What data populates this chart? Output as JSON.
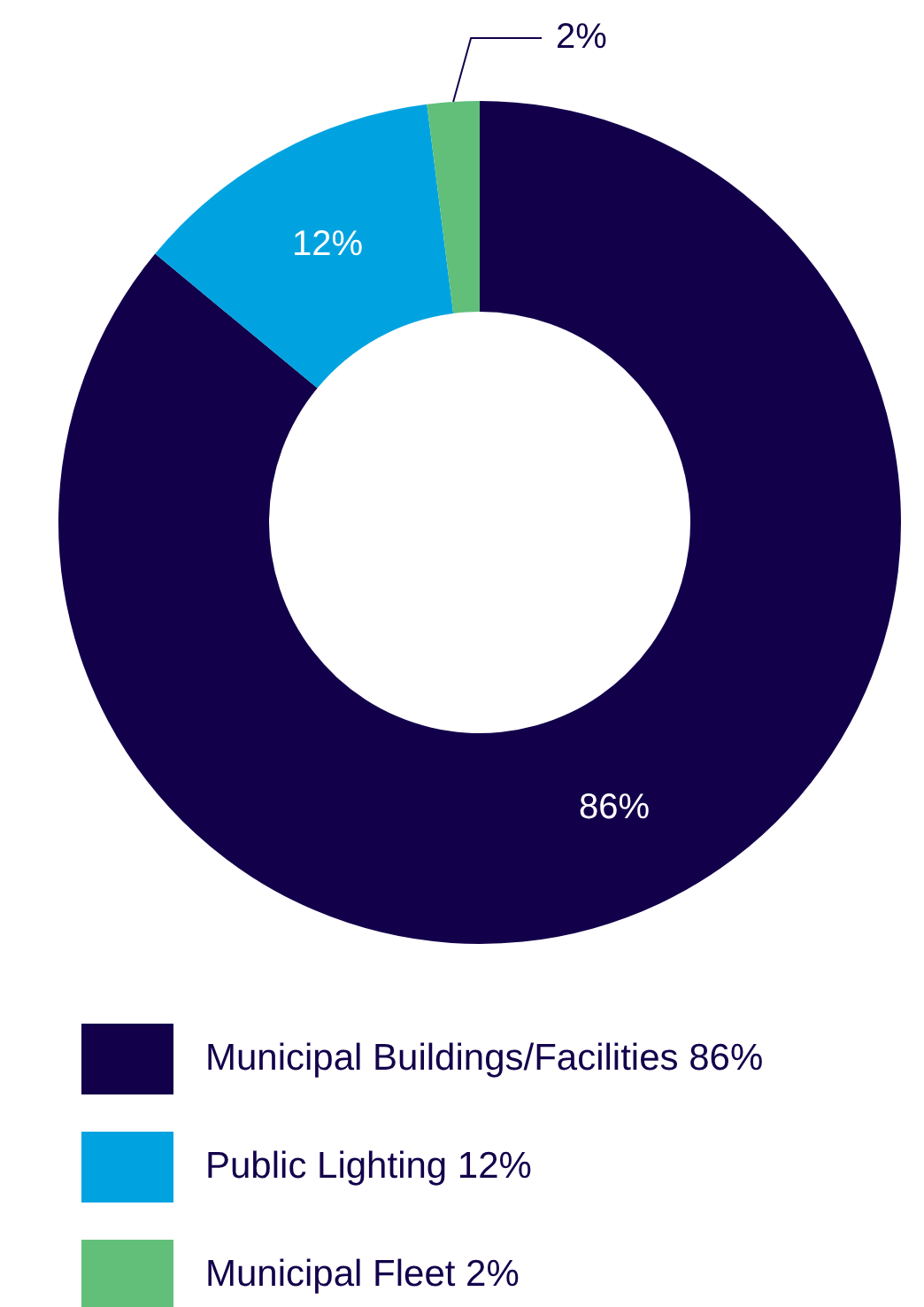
{
  "chart_data": {
    "type": "donut",
    "categories": [
      "Municipal Buildings/Facilities 86%",
      "Public Lighting 12%",
      "Municipal Fleet 2%"
    ],
    "values": [
      86,
      12,
      2
    ],
    "colors": [
      "#13004b",
      "#00a3e0",
      "#61bf7a"
    ],
    "value_labels": [
      "86%",
      "12%",
      "2%"
    ],
    "legend": "bottom"
  }
}
